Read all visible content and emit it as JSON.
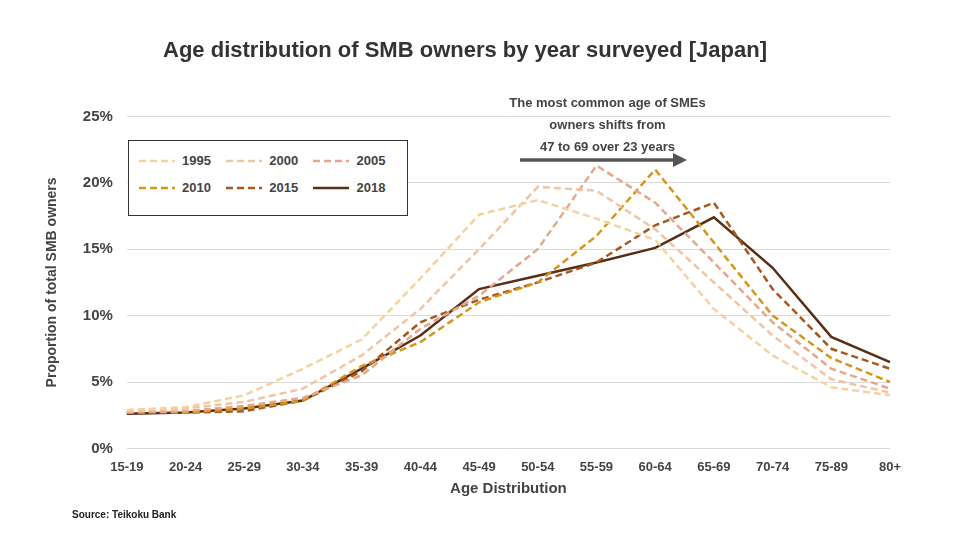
{
  "chart_data": {
    "type": "line",
    "title": "Age distribution of SMB owners by year surveyed [Japan]",
    "x_label": "Age Distribution",
    "y_label": "Proportion of total SMB owners",
    "annotation": [
      "The most common age of SMEs",
      "owners shifts from",
      "47 to 69 over 23 years"
    ],
    "source": "Source: Teikoku Bank",
    "categories": [
      "15-19",
      "20-24",
      "25-29",
      "30-34",
      "35-39",
      "40-44",
      "45-49",
      "50-54",
      "55-59",
      "60-64",
      "65-69",
      "70-74",
      "75-89",
      "80+"
    ],
    "series": [
      {
        "name": "1995",
        "color": "#f6d29e",
        "line_style": "dashed",
        "values": [
          2.9,
          3.1,
          4.0,
          6.0,
          8.2,
          12.8,
          17.6,
          18.7,
          17.3,
          15.7,
          10.5,
          7.0,
          4.6,
          4.0
        ]
      },
      {
        "name": "2000",
        "color": "#f2c4a4",
        "line_style": "dashed",
        "values": [
          2.8,
          3.0,
          3.5,
          4.5,
          7.0,
          10.5,
          15.0,
          19.7,
          19.4,
          16.5,
          12.5,
          8.5,
          5.2,
          4.2
        ]
      },
      {
        "name": "2005",
        "color": "#e6a78a",
        "line_style": "dashed",
        "values": [
          2.7,
          2.8,
          3.2,
          3.8,
          5.5,
          9.0,
          11.5,
          15.0,
          21.3,
          18.5,
          14.0,
          9.5,
          6.0,
          4.5
        ]
      },
      {
        "name": "2010",
        "color": "#d8951c",
        "line_style": "dashed",
        "values": [
          2.8,
          2.7,
          3.0,
          3.6,
          6.2,
          8.0,
          11.0,
          12.5,
          16.0,
          21.0,
          15.5,
          10.0,
          6.8,
          5.0
        ]
      },
      {
        "name": "2015",
        "color": "#a8581e",
        "line_style": "dashed",
        "values": [
          2.7,
          2.7,
          2.8,
          3.6,
          5.8,
          9.5,
          11.2,
          12.5,
          14.0,
          16.8,
          18.5,
          12.0,
          7.5,
          6.0
        ]
      },
      {
        "name": "2018",
        "color": "#5a2e14",
        "line_style": "solid",
        "values": [
          2.6,
          2.7,
          3.0,
          3.6,
          6.0,
          8.5,
          12.0,
          13.0,
          14.0,
          15.1,
          17.4,
          13.6,
          8.4,
          6.5
        ]
      }
    ],
    "ylim": [
      0,
      25
    ],
    "yticks": [
      {
        "value": 0,
        "label": "0%"
      },
      {
        "value": 5,
        "label": "5%"
      },
      {
        "value": 10,
        "label": "10%"
      },
      {
        "value": 15,
        "label": "15%"
      },
      {
        "value": 20,
        "label": "20%"
      },
      {
        "value": 25,
        "label": "25%"
      }
    ],
    "grid": true,
    "legend": "top-left"
  }
}
